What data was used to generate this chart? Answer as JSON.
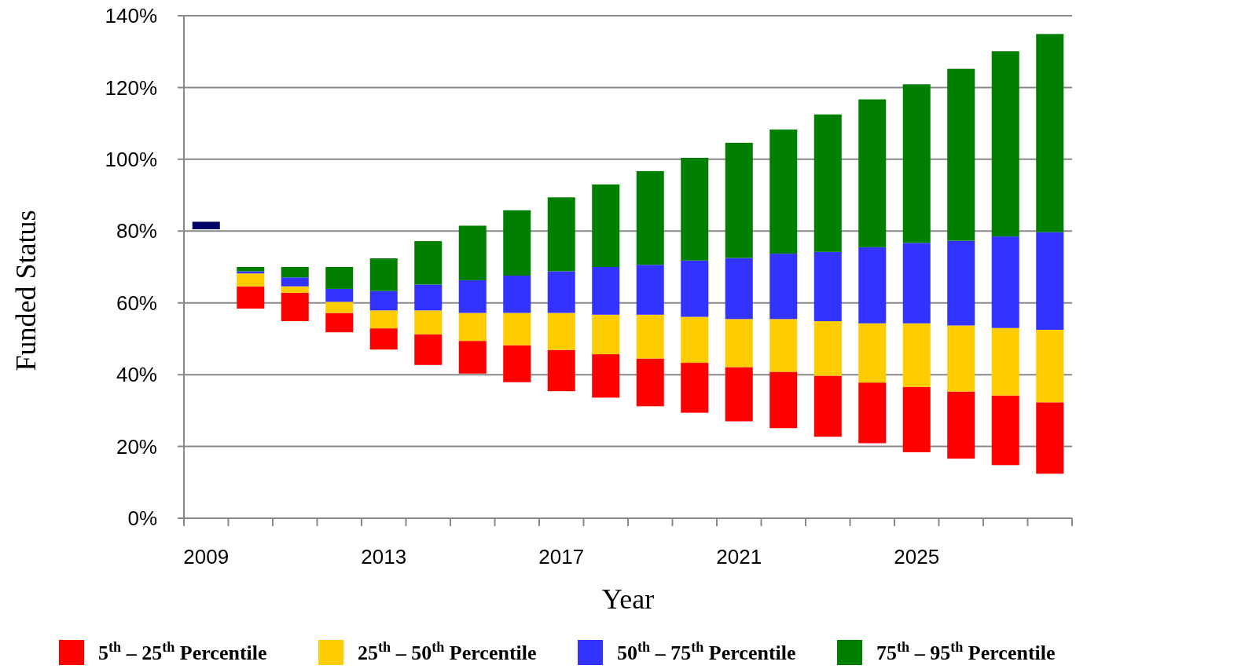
{
  "chart_data": {
    "type": "bar",
    "xlabel": "Year",
    "ylabel": "Funded Status",
    "categories": [
      "2009",
      null,
      null,
      null,
      "2013",
      null,
      null,
      null,
      "2017",
      null,
      null,
      null,
      "2021",
      null,
      null,
      null,
      "2025",
      null,
      null,
      null
    ],
    "series": [
      {
        "color": "#000066",
        "base": [
          80.5,
          null,
          null,
          null,
          null,
          null,
          null,
          null,
          null,
          null,
          null,
          null,
          null,
          null,
          null,
          null,
          null,
          null,
          null,
          null
        ],
        "values": [
          2.1,
          null,
          null,
          null,
          null,
          null,
          null,
          null,
          null,
          null,
          null,
          null,
          null,
          null,
          null,
          null,
          null,
          null,
          null,
          null
        ]
      },
      {
        "name": "5$^{th}$ – 25$^{th}$ Percentile",
        "color": "#ff0000",
        "base": [
          null,
          58.4,
          54.9,
          51.8,
          47.0,
          42.7,
          40.3,
          37.9,
          35.4,
          33.6,
          31.2,
          29.4,
          27.0,
          25.1,
          22.7,
          20.9,
          18.4,
          16.6,
          14.8,
          12.4
        ],
        "values": [
          null,
          6.2,
          7.9,
          5.4,
          5.9,
          8.5,
          9.1,
          10.3,
          11.5,
          12.1,
          13.3,
          13.9,
          15.1,
          15.7,
          17.0,
          16.9,
          18.2,
          18.7,
          19.4,
          19.9
        ]
      },
      {
        "name": "25$^{th}$ – 50$^{th}$ Percentile",
        "color": "#ffcc00",
        "base": [
          null,
          64.6,
          62.8,
          57.2,
          52.9,
          51.2,
          49.4,
          48.2,
          46.9,
          45.7,
          44.5,
          43.3,
          42.1,
          40.8,
          39.7,
          37.8,
          36.6,
          35.3,
          34.2,
          32.3
        ],
        "values": [
          null,
          3.6,
          1.8,
          3.1,
          5.0,
          6.7,
          7.8,
          9.0,
          10.3,
          11.0,
          12.2,
          12.8,
          13.4,
          14.7,
          15.2,
          16.5,
          17.7,
          18.4,
          18.8,
          20.2
        ]
      },
      {
        "name": "50$^{th}$ – 75$^{th}$ Percentile",
        "color": "#3333ff",
        "base": [
          null,
          68.2,
          64.6,
          60.3,
          57.9,
          57.9,
          57.2,
          57.2,
          57.2,
          56.7,
          56.7,
          56.1,
          55.5,
          55.5,
          54.9,
          54.3,
          54.3,
          53.7,
          53.0,
          52.5
        ],
        "values": [
          null,
          0.6,
          2.5,
          3.6,
          5.4,
          7.2,
          9.1,
          10.4,
          11.6,
          13.3,
          13.9,
          15.7,
          17.0,
          18.2,
          19.3,
          21.2,
          22.4,
          23.6,
          25.5,
          27.2
        ]
      },
      {
        "name": "75$^{th}$ – 95$^{th}$ Percentile",
        "color": "#007f00",
        "base": [
          null,
          68.8,
          67.1,
          63.9,
          63.3,
          65.1,
          66.3,
          67.6,
          68.8,
          70.0,
          70.6,
          71.8,
          72.5,
          73.7,
          74.2,
          75.5,
          76.7,
          77.3,
          78.5,
          79.7
        ],
        "values": [
          null,
          1.2,
          2.9,
          6.1,
          9.1,
          12.1,
          15.2,
          18.2,
          20.6,
          23.0,
          26.1,
          28.6,
          32.1,
          34.6,
          38.3,
          41.2,
          44.2,
          47.9,
          51.6,
          55.2
        ]
      }
    ],
    "ylim": [
      0,
      140
    ],
    "yticks": [
      {
        "value": 0,
        "label": "0%"
      },
      {
        "value": 20,
        "label": "20%"
      },
      {
        "value": 40,
        "label": "40%"
      },
      {
        "value": 60,
        "label": "60%"
      },
      {
        "value": 80,
        "label": "80%"
      },
      {
        "value": 100,
        "label": "100%"
      },
      {
        "value": 120,
        "label": "120%"
      },
      {
        "value": 140,
        "label": "140%"
      }
    ],
    "grid": "y",
    "legend": "bottom"
  }
}
